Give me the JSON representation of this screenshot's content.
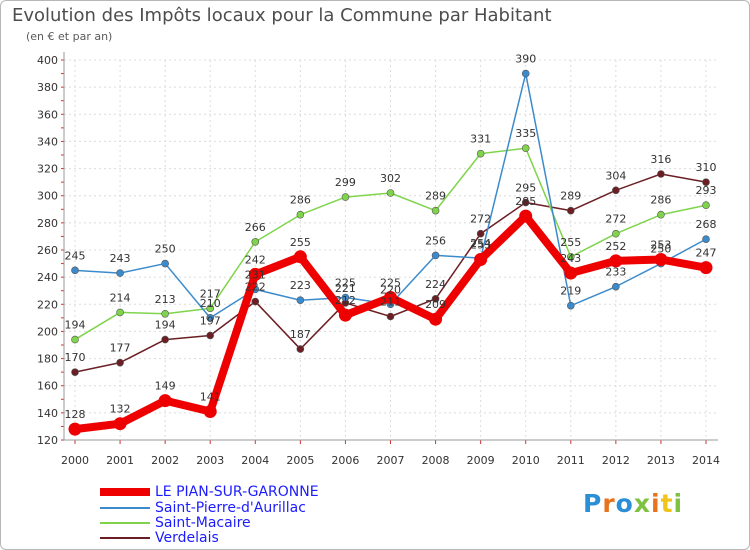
{
  "title": "Evolution des Impôts locaux pour la Commune par Habitant",
  "subtitle": "(en € et par an)",
  "logo_text": "Proxiti",
  "chart_data": {
    "type": "line",
    "title": "Evolution des Impôts locaux pour la Commune par Habitant",
    "ylabel": "(en € et par an)",
    "xlabel": "",
    "ylim": [
      120,
      400
    ],
    "yticks": [
      120,
      140,
      160,
      180,
      200,
      220,
      240,
      260,
      280,
      300,
      320,
      340,
      360,
      380,
      400
    ],
    "categories": [
      "2000",
      "2001",
      "2002",
      "2003",
      "2004",
      "2005",
      "2006",
      "2007",
      "2008",
      "2009",
      "2010",
      "2011",
      "2012",
      "2013",
      "2014"
    ],
    "series": [
      {
        "name": "Verdelais",
        "color": "#6b1f24",
        "values": [
          170,
          177,
          194,
          197,
          222,
          187,
          221,
          211,
          224,
          272,
          295,
          289,
          304,
          316,
          310
        ]
      },
      {
        "name": "Saint-Macaire",
        "color": "#7fd44c",
        "values": [
          194,
          214,
          213,
          217,
          266,
          286,
          299,
          302,
          289,
          331,
          335,
          255,
          272,
          286,
          293
        ]
      },
      {
        "name": "Saint-Pierre-d'Aurillac",
        "color": "#3b8bcc",
        "values": [
          245,
          243,
          250,
          210,
          231,
          223,
          225,
          220,
          256,
          254,
          390,
          219,
          233,
          250,
          268
        ]
      },
      {
        "name": "LE PIAN-SUR-GARONNE",
        "color": "#ee0000",
        "values": [
          128,
          132,
          149,
          141,
          242,
          255,
          212,
          225,
          209,
          253,
          285,
          243,
          252,
          253,
          247
        ]
      }
    ],
    "legend": [
      "LE PIAN-SUR-GARONNE",
      "Saint-Pierre-d'Aurillac",
      "Saint-Macaire",
      "Verdelais"
    ],
    "legend_position": "bottom-left",
    "grid": true
  }
}
